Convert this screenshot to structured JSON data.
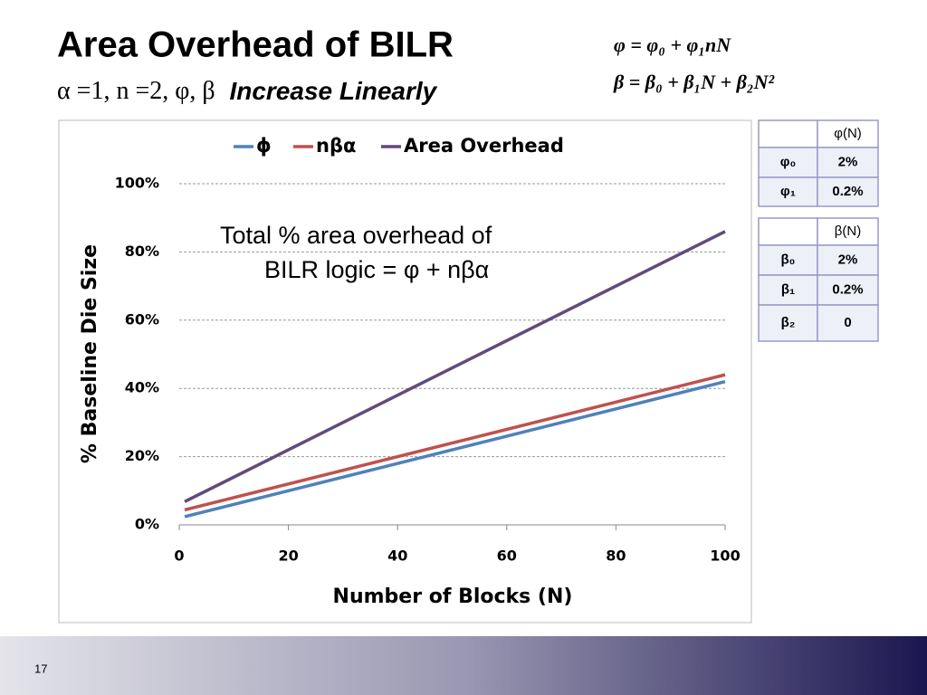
{
  "title": "Area Overhead of BILR",
  "subtitle": {
    "params": "α =1, n =2, φ, β",
    "emphasis": "Increase Linearly"
  },
  "formulas": [
    "φ = φ₀ + φ₁nN",
    "β = β₀ + β₁N + β₂N²"
  ],
  "chart_data": {
    "type": "line",
    "x_label": "Number of Blocks (N)",
    "y_label": "% Baseline Die Size",
    "annotation": [
      "Total % area overhead of",
      "BILR logic = φ + nβα"
    ],
    "x": [
      1,
      100
    ],
    "series": [
      {
        "name": "ϕ",
        "color": "#4f81bd",
        "values": [
          2.4,
          42
        ]
      },
      {
        "name": "nβα",
        "color": "#c0504d",
        "values": [
          4.4,
          44
        ]
      },
      {
        "name": "Area Overhead",
        "color": "#604a7b",
        "values": [
          6.8,
          86
        ]
      }
    ],
    "xlim": [
      0,
      100
    ],
    "xticks": [
      0,
      20,
      40,
      60,
      80,
      100
    ],
    "ylim": [
      0,
      100
    ],
    "yticks": [
      {
        "value": 0,
        "label": "0%"
      },
      {
        "value": 20,
        "label": "20%"
      },
      {
        "value": 40,
        "label": "40%"
      },
      {
        "value": 60,
        "label": "60%"
      },
      {
        "value": 80,
        "label": "80%"
      },
      {
        "value": 100,
        "label": "100%"
      }
    ],
    "grid": true
  },
  "tables": [
    {
      "header": "φ(N)",
      "rows": [
        [
          "φ₀",
          "2%"
        ],
        [
          "φ₁",
          "0.2%"
        ]
      ]
    },
    {
      "header": "β(N)",
      "rows": [
        [
          "β₀",
          "2%"
        ],
        [
          "β₁",
          "0.2%"
        ],
        [
          "β₂",
          "0"
        ]
      ]
    }
  ],
  "page_number": "17"
}
